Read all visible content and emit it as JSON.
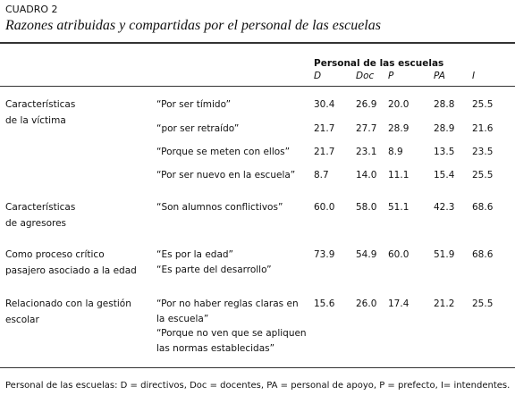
{
  "header": {
    "label": "CUADRO 2",
    "title": "Razones atribuidas y compartidas por el personal de las escuelas"
  },
  "table": {
    "group_header": "Personal de las escuelas",
    "columns": [
      "D",
      "Doc",
      "P",
      "PA",
      "I"
    ],
    "rows": [
      {
        "category": [
          "Características",
          "de la víctima"
        ],
        "reason": [
          "“Por ser tímido”"
        ],
        "values": [
          "30.4",
          "26.9",
          "20.0",
          "28.8",
          "25.5"
        ]
      },
      {
        "reason": [
          "“por ser retraído”"
        ],
        "values": [
          "21.7",
          "27.7",
          "28.9",
          "28.9",
          "21.6"
        ]
      },
      {
        "reason": [
          "“Porque se meten con ellos”"
        ],
        "values": [
          "21.7",
          "23.1",
          "8.9",
          "13.5",
          "23.5"
        ]
      },
      {
        "reason": [
          "“Por ser nuevo en la escuela”"
        ],
        "values": [
          "8.7",
          "14.0",
          "11.1",
          "15.4",
          "25.5"
        ]
      },
      {
        "category": [
          "Características",
          "de agresores"
        ],
        "reason": [
          "“Son alumnos conflictivos”"
        ],
        "values": [
          "60.0",
          "58.0",
          "51.1",
          "42.3",
          "68.6"
        ]
      },
      {
        "category": [
          "Como proceso crítico",
          "pasajero asociado a la edad"
        ],
        "reason": [
          "“Es por la edad”",
          "“Es parte del desarrollo”"
        ],
        "values": [
          "73.9",
          "54.9",
          "60.0",
          "51.9",
          "68.6"
        ]
      },
      {
        "category": [
          "Relacionado con la gestión",
          "escolar"
        ],
        "reason": [
          "“Por no haber reglas claras en",
          "la escuela”",
          "“Porque no ven que se apliquen",
          "las normas establecidas”"
        ],
        "values": [
          "15.6",
          "26.0",
          "17.4",
          "21.2",
          "25.5"
        ]
      }
    ]
  },
  "footer": "Personal de las escuelas: D = directivos, Doc = docentes, PA = personal de apoyo, P = prefecto, I= intendentes."
}
